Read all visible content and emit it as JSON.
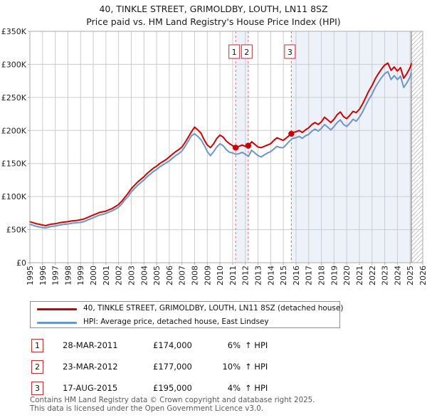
{
  "title": {
    "line1": "40, TINKLE STREET, GRIMOLDBY, LOUTH, LN11 8SZ",
    "line2": "Price paid vs. HM Land Registry's House Price Index (HPI)"
  },
  "colors": {
    "red": "#cc0000",
    "blue": "#6d96c8",
    "band": "#edf1fa",
    "dashed": "#e06666",
    "grid": "#cccccc",
    "border": "#aaaaaa",
    "hatch": "#bbbbbb",
    "sale_box_border": "#bb3333",
    "data_end_line": "#888888",
    "tick_text": "#222222"
  },
  "chart_data": {
    "type": "line",
    "grid": true,
    "legend_position": "bottom",
    "x_axis": {
      "start_year": 1995,
      "end_year": 2026,
      "tick_years": [
        1995,
        1996,
        1997,
        1998,
        1999,
        2000,
        2001,
        2002,
        2003,
        2004,
        2005,
        2006,
        2007,
        2008,
        2009,
        2010,
        2011,
        2012,
        2013,
        2014,
        2015,
        2016,
        2017,
        2018,
        2019,
        2020,
        2021,
        2022,
        2023,
        2024,
        2025,
        2026
      ]
    },
    "y_axis": {
      "min_k": 0,
      "max_k": 350,
      "tick_values_k": [
        0,
        50,
        100,
        150,
        200,
        250,
        300,
        350
      ],
      "tick_labels": [
        "£0",
        "£50K",
        "£100K",
        "£150K",
        "£200K",
        "£250K",
        "£300K",
        "£350K"
      ]
    },
    "sample_step_years": 0.25,
    "data_end_year": 2025.1,
    "series": [
      {
        "name": "40, TINKLE STREET, GRIMOLDBY, LOUTH, LN11 8SZ (detached house)",
        "color": "#cc0000",
        "values_k": [
          62,
          60.5,
          59,
          58,
          57,
          56,
          57.5,
          58.5,
          59,
          60,
          61,
          61.5,
          62,
          63,
          63.5,
          64,
          65,
          66,
          68,
          70,
          72,
          74,
          76,
          77,
          78,
          80,
          82,
          85,
          88,
          93,
          99,
          105,
          112,
          117,
          122,
          126,
          130,
          135,
          139,
          143,
          146,
          150,
          153,
          156,
          160,
          164,
          168,
          171,
          175,
          182,
          190,
          198,
          205,
          201,
          196,
          186,
          178,
          174,
          180,
          188,
          193,
          190,
          184,
          180,
          177,
          174,
          176,
          178,
          176,
          177,
          183,
          179,
          175,
          174,
          176,
          178,
          180,
          185,
          189,
          187,
          185,
          189,
          193,
          197,
          198,
          200,
          197,
          201,
          204,
          209,
          212,
          209,
          213,
          220,
          216,
          212,
          217,
          224,
          228,
          221,
          218,
          223,
          229,
          227,
          232,
          240,
          250,
          260,
          268,
          278,
          286,
          293,
          299,
          302,
          291,
          296,
          290,
          295,
          279,
          286,
          295,
          301
        ]
      },
      {
        "name": "HPI: Average price, detached house, East Lindsey",
        "color": "#6d96c8",
        "values_k": [
          58,
          56.5,
          55,
          54,
          53,
          52.5,
          54,
          55,
          55.5,
          56.5,
          57.5,
          58,
          58.5,
          59.5,
          60,
          60.5,
          61,
          62,
          64,
          66,
          68,
          70,
          72,
          73,
          74.5,
          76.5,
          78.5,
          81,
          84,
          89,
          95,
          100,
          107,
          112,
          117,
          121,
          125,
          130,
          134,
          138,
          141,
          145,
          148,
          151,
          154,
          158,
          162,
          165,
          169,
          176,
          184,
          192,
          195,
          191,
          186,
          178,
          168,
          162,
          168,
          175,
          180,
          177,
          171,
          167,
          166,
          164,
          165,
          167,
          164,
          161,
          170,
          166,
          162,
          160,
          163,
          166,
          168,
          172,
          176,
          174,
          174,
          179,
          184,
          188,
          189,
          191,
          188,
          192,
          194,
          199,
          202,
          199,
          203,
          209,
          205,
          201,
          206,
          212,
          216,
          209,
          206,
          211,
          217,
          214,
          220,
          228,
          238,
          247,
          255,
          265,
          273,
          280,
          286,
          289,
          277,
          283,
          277,
          282,
          265,
          272,
          281,
          287
        ]
      }
    ],
    "sales": [
      {
        "label": "1",
        "year": 2011.24,
        "price_k": 174
      },
      {
        "label": "2",
        "year": 2012.23,
        "price_k": 177
      },
      {
        "label": "3",
        "year": 2015.63,
        "price_k": 195
      }
    ],
    "shaded_bands": [
      {
        "from": 2011.24,
        "to": 2012.23
      },
      {
        "from": 2015.63,
        "to": 2025.1
      }
    ],
    "future_hatch": {
      "from": 2025.1,
      "to": 2026
    }
  },
  "legend": {
    "items": [
      {
        "label": "40, TINKLE STREET, GRIMOLDBY, LOUTH, LN11 8SZ (detached house)"
      },
      {
        "label": "HPI: Average price, detached house, East Lindsey"
      }
    ]
  },
  "transactions": [
    {
      "num": "1",
      "date": "28-MAR-2011",
      "price": "£174,000",
      "pct": "6%",
      "vs": "↑ HPI"
    },
    {
      "num": "2",
      "date": "23-MAR-2012",
      "price": "£177,000",
      "pct": "10%",
      "vs": "↑ HPI"
    },
    {
      "num": "3",
      "date": "17-AUG-2015",
      "price": "£195,000",
      "pct": "4%",
      "vs": "↑ HPI"
    }
  ],
  "footer": {
    "line1": "Contains HM Land Registry data © Crown copyright and database right 2025.",
    "line2": "This data is licensed under the Open Government Licence v3.0."
  }
}
